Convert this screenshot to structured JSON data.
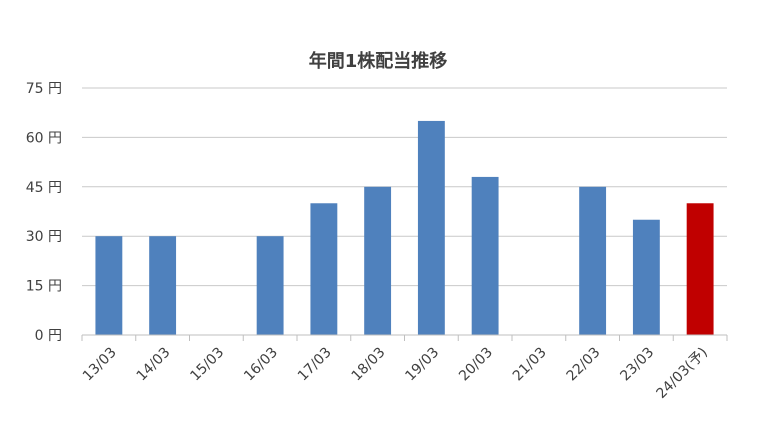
{
  "chart_data": {
    "type": "bar",
    "title": "年間1株配当推移",
    "categories": [
      "13/03",
      "14/03",
      "15/03",
      "16/03",
      "17/03",
      "18/03",
      "19/03",
      "20/03",
      "21/03",
      "22/03",
      "23/03",
      "24/03(予)"
    ],
    "values": [
      30,
      30,
      null,
      30,
      40,
      45,
      65,
      48,
      null,
      45,
      35,
      40
    ],
    "bar_colors": [
      "#4f81bd",
      "#4f81bd",
      "#4f81bd",
      "#4f81bd",
      "#4f81bd",
      "#4f81bd",
      "#4f81bd",
      "#4f81bd",
      "#4f81bd",
      "#4f81bd",
      "#4f81bd",
      "#c00000"
    ],
    "yticks": [
      "0 円",
      "15 円",
      "30 円",
      "45 円",
      "60 円",
      "75 円"
    ],
    "ytick_values": [
      0,
      15,
      30,
      45,
      60,
      75
    ],
    "ylim": [
      0,
      75
    ],
    "xlabel": "",
    "ylabel": "",
    "grid": true,
    "legend": "none"
  }
}
